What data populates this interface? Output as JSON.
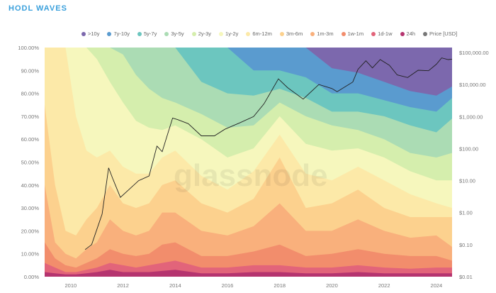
{
  "title": "HODL WAVES",
  "watermark": "glassnode",
  "chart_data": {
    "type": "area",
    "stacked": true,
    "title": "HODL WAVES",
    "legend_position": "top",
    "x": [
      2009.0,
      2009.4,
      2009.8,
      2010.2,
      2010.6,
      2011.0,
      2011.5,
      2012.0,
      2012.5,
      2013.0,
      2013.5,
      2014.0,
      2015.0,
      2016.0,
      2017.0,
      2018.0,
      2019.0,
      2020.0,
      2021.0,
      2022.0,
      2023.0,
      2024.0,
      2024.6
    ],
    "xlim": [
      2009.0,
      2024.6
    ],
    "x_ticks": [
      "2010",
      "2012",
      "2014",
      "2016",
      "2018",
      "2020",
      "2022",
      "2024"
    ],
    "y_left": {
      "range": [
        0,
        100
      ],
      "ticks": [
        "0.00%",
        "10.00%",
        "20.00%",
        "30.00%",
        "40.00%",
        "50.00%",
        "60.00%",
        "70.00%",
        "80.00%",
        "90.00%",
        "100.00%"
      ]
    },
    "y_right": {
      "scale": "log",
      "range": [
        0.01,
        100000
      ],
      "ticks": [
        "$0.01",
        "$0.10",
        "$1.00",
        "$10.00",
        "$100.00",
        "$1,000.00",
        "$10,000.00",
        "$100,000.00"
      ]
    },
    "series": [
      {
        "name": ">10y",
        "color": "#7c68ad",
        "values": [
          0,
          0,
          0,
          0,
          0,
          0,
          0,
          0,
          0,
          0,
          0,
          0,
          0,
          0,
          0,
          0,
          0,
          9,
          11,
          15,
          19,
          21,
          17
        ]
      },
      {
        "name": "7y-10y",
        "color": "#5a9bcf",
        "values": [
          0,
          0,
          0,
          0,
          0,
          0,
          0,
          0,
          0,
          0,
          0,
          0,
          0,
          0,
          10,
          10,
          13,
          11,
          9,
          8,
          7,
          7,
          5
        ]
      },
      {
        "name": "5y-7y",
        "color": "#6cc6bf",
        "values": [
          0,
          0,
          0,
          0,
          0,
          0,
          0,
          0,
          0,
          0,
          0,
          0,
          15,
          20,
          11,
          8,
          9,
          8,
          8,
          7,
          8,
          9,
          9
        ]
      },
      {
        "name": "3y-5y",
        "color": "#abdcb4",
        "values": [
          0,
          0,
          0,
          0,
          0,
          0,
          0,
          3,
          12,
          18,
          22,
          24,
          14,
          15,
          13,
          6,
          8,
          6,
          8,
          10,
          12,
          11,
          15
        ]
      },
      {
        "name": "2y-3y",
        "color": "#d5eead",
        "values": [
          0,
          0,
          0,
          0,
          0,
          5,
          15,
          21,
          20,
          17,
          14,
          10,
          11,
          13,
          10,
          6,
          12,
          11,
          8,
          8,
          8,
          10,
          12
        ]
      },
      {
        "name": "1y-2y",
        "color": "#f6f7bd",
        "values": [
          0,
          0,
          0,
          30,
          45,
          43,
          30,
          28,
          23,
          20,
          12,
          11,
          16,
          14,
          10,
          8,
          13,
          13,
          8,
          10,
          10,
          10,
          12
        ]
      },
      {
        "name": "6m-12m",
        "color": "#fce9a8",
        "values": [
          25,
          60,
          80,
          52,
          30,
          22,
          15,
          16,
          15,
          13,
          12,
          13,
          12,
          10,
          12,
          10,
          15,
          10,
          10,
          12,
          10,
          6,
          4
        ]
      },
      {
        "name": "3m-6m",
        "color": "#fcd18e",
        "values": [
          35,
          25,
          10,
          10,
          13,
          15,
          15,
          12,
          12,
          12,
          12,
          14,
          12,
          10,
          12,
          20,
          10,
          12,
          13,
          10,
          9,
          8,
          13
        ]
      },
      {
        "name": "1m-3m",
        "color": "#f9b07c",
        "values": [
          25,
          7,
          5,
          4,
          6,
          7,
          13,
          10,
          9,
          10,
          14,
          13,
          11,
          9,
          11,
          18,
          11,
          10,
          13,
          10,
          8,
          9,
          6
        ]
      },
      {
        "name": "1w-1m",
        "color": "#f28d6c",
        "values": [
          9,
          4,
          3,
          2,
          3,
          4,
          6,
          5,
          5,
          5,
          8,
          8,
          5,
          5,
          6,
          9,
          5,
          6,
          7,
          6,
          5.5,
          5,
          3
        ]
      },
      {
        "name": "1d-1w",
        "color": "#e2647a",
        "values": [
          4,
          2.5,
          1,
          1,
          1.5,
          2,
          3,
          3,
          2,
          3,
          3.5,
          4,
          2.5,
          2.5,
          3,
          3,
          2.5,
          2.5,
          3,
          2.5,
          2,
          2.5,
          2.5
        ]
      },
      {
        "name": "24h",
        "color": "#b5346f",
        "values": [
          2,
          1.5,
          1,
          1,
          1.5,
          2,
          3,
          2,
          2,
          2,
          2.5,
          3,
          1.5,
          1.5,
          2,
          2,
          1.5,
          1.5,
          2,
          1.5,
          1.5,
          1.5,
          1.5
        ]
      }
    ],
    "price": {
      "name": "Price [USD]",
      "color": "#222222",
      "x": [
        2010.55,
        2010.8,
        2011.0,
        2011.2,
        2011.45,
        2011.6,
        2011.9,
        2012.2,
        2012.6,
        2013.0,
        2013.3,
        2013.5,
        2013.9,
        2014.1,
        2014.5,
        2015.0,
        2015.5,
        2015.9,
        2016.5,
        2017.0,
        2017.4,
        2017.95,
        2018.3,
        2018.9,
        2019.5,
        2020.0,
        2020.2,
        2020.8,
        2021.0,
        2021.3,
        2021.55,
        2021.85,
        2022.2,
        2022.5,
        2022.9,
        2023.3,
        2023.7,
        2024.0,
        2024.2,
        2024.45,
        2024.6
      ],
      "values": [
        0.07,
        0.1,
        0.3,
        0.9,
        25,
        12,
        3,
        5,
        10,
        14,
        120,
        80,
        900,
        800,
        600,
        250,
        250,
        400,
        650,
        1000,
        2500,
        15000,
        8000,
        3500,
        10000,
        7500,
        6000,
        12000,
        30000,
        55000,
        33000,
        60000,
        40000,
        20000,
        16500,
        28000,
        27000,
        43000,
        68000,
        60000,
        62000
      ]
    }
  }
}
